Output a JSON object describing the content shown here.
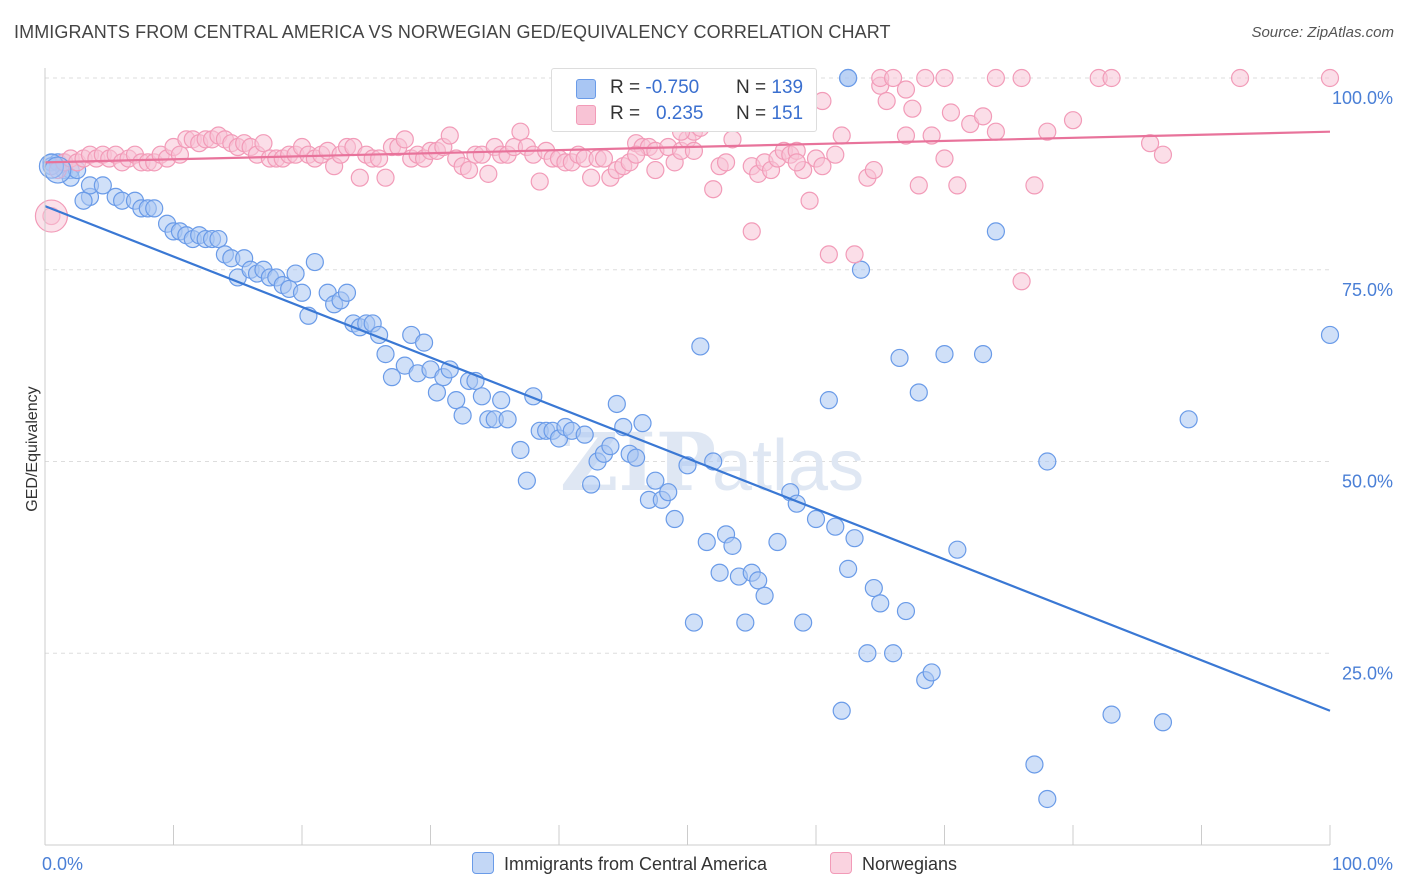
{
  "chart_data": {
    "type": "scatter",
    "title": "IMMIGRANTS FROM CENTRAL AMERICA VS NORWEGIAN GED/EQUIVALENCY CORRELATION CHART",
    "source": "Source: ZipAtlas.com",
    "ylabel": "GED/Equivalency",
    "xlim": [
      0,
      100
    ],
    "ylim": [
      0,
      100
    ],
    "x_tick_labels": [
      "0.0%",
      "100.0%"
    ],
    "y_tick_labels": [
      "25.0%",
      "50.0%",
      "75.0%",
      "100.0%"
    ],
    "y_tick_values": [
      25,
      50,
      75,
      100
    ],
    "grid": true,
    "legend_position": "top-center",
    "watermark": "ZIPatlas",
    "series": [
      {
        "name": "Immigrants from Central America",
        "color": "#6a9be8",
        "fill": "#a9c6f3",
        "line_color": "#3a78d4",
        "R": "-0.750",
        "N": "139",
        "trend": [
          [
            0,
            83.3
          ],
          [
            100,
            17.5
          ]
        ],
        "points": [
          [
            0.5,
            89
          ],
          [
            1,
            89
          ],
          [
            1.5,
            88
          ],
          [
            2,
            88
          ],
          [
            2,
            87
          ],
          [
            3.5,
            84.5
          ],
          [
            3.5,
            86
          ],
          [
            4.5,
            86
          ],
          [
            5.5,
            84.5
          ],
          [
            6,
            84
          ],
          [
            7,
            84
          ],
          [
            7.5,
            83
          ],
          [
            8,
            83
          ],
          [
            8.5,
            83
          ],
          [
            9.5,
            81
          ],
          [
            10,
            80
          ],
          [
            10.5,
            80
          ],
          [
            11,
            79.5
          ],
          [
            11.5,
            79
          ],
          [
            12,
            79.5
          ],
          [
            12.5,
            79
          ],
          [
            13,
            79
          ],
          [
            13.5,
            79
          ],
          [
            14,
            77
          ],
          [
            14.5,
            76.5
          ],
          [
            15,
            74
          ],
          [
            15.5,
            76.5
          ],
          [
            16,
            75
          ],
          [
            16.5,
            74.5
          ],
          [
            17,
            75
          ],
          [
            17.5,
            74
          ],
          [
            18,
            74
          ],
          [
            18.5,
            73
          ],
          [
            19,
            72.5
          ],
          [
            19.5,
            74.5
          ],
          [
            20,
            72
          ],
          [
            20.5,
            69
          ],
          [
            21,
            76
          ],
          [
            22,
            72
          ],
          [
            22.5,
            70.5
          ],
          [
            23,
            71
          ],
          [
            23.5,
            72
          ],
          [
            24,
            68
          ],
          [
            24.5,
            67.5
          ],
          [
            25,
            68
          ],
          [
            25.5,
            68
          ],
          [
            26,
            66.5
          ],
          [
            26.5,
            64
          ],
          [
            27,
            61
          ],
          [
            28,
            62.5
          ],
          [
            28.5,
            66.5
          ],
          [
            29,
            61.5
          ],
          [
            29.5,
            65.5
          ],
          [
            30,
            62
          ],
          [
            30.5,
            59
          ],
          [
            31,
            61
          ],
          [
            31.5,
            62
          ],
          [
            32,
            58
          ],
          [
            32.5,
            56
          ],
          [
            33,
            60.5
          ],
          [
            33.5,
            60.5
          ],
          [
            34,
            58.5
          ],
          [
            34.5,
            55.5
          ],
          [
            35,
            55.5
          ],
          [
            35.5,
            58
          ],
          [
            36,
            55.5
          ],
          [
            37,
            51.5
          ],
          [
            37.5,
            47.5
          ],
          [
            38,
            58.5
          ],
          [
            38.5,
            54
          ],
          [
            39,
            54
          ],
          [
            39.5,
            54
          ],
          [
            40,
            53
          ],
          [
            40.5,
            54.5
          ],
          [
            41,
            54
          ],
          [
            42,
            53.5
          ],
          [
            42.5,
            47
          ],
          [
            43,
            50
          ],
          [
            43.5,
            51
          ],
          [
            44,
            52
          ],
          [
            44.5,
            57.5
          ],
          [
            45,
            54.5
          ],
          [
            45.5,
            51
          ],
          [
            46,
            50.5
          ],
          [
            46.5,
            55
          ],
          [
            47,
            45
          ],
          [
            47.5,
            47.5
          ],
          [
            48,
            45
          ],
          [
            48.5,
            46
          ],
          [
            49,
            42.5
          ],
          [
            50,
            49.5
          ],
          [
            50.5,
            29
          ],
          [
            51,
            65
          ],
          [
            51.5,
            39.5
          ],
          [
            52,
            50
          ],
          [
            52.5,
            35.5
          ],
          [
            53,
            40.5
          ],
          [
            53.5,
            39
          ],
          [
            54,
            35
          ],
          [
            54.5,
            29
          ],
          [
            55,
            35.5
          ],
          [
            55.5,
            34.5
          ],
          [
            56,
            32.5
          ],
          [
            57,
            39.5
          ],
          [
            58,
            46
          ],
          [
            58.5,
            44.5
          ],
          [
            58.5,
            100
          ],
          [
            59,
            29
          ],
          [
            60,
            42.5
          ],
          [
            61,
            58
          ],
          [
            61.5,
            41.5
          ],
          [
            62,
            17.5
          ],
          [
            62.5,
            36
          ],
          [
            63,
            40
          ],
          [
            64,
            25
          ],
          [
            64.5,
            33.5
          ],
          [
            65,
            31.5
          ],
          [
            62.5,
            100
          ],
          [
            66,
            25
          ],
          [
            66.5,
            63.5
          ],
          [
            67,
            30.5
          ],
          [
            68,
            59
          ],
          [
            68.5,
            21.5
          ],
          [
            69,
            22.5
          ],
          [
            70,
            64
          ],
          [
            71,
            38.5
          ],
          [
            73,
            64
          ],
          [
            74,
            80
          ],
          [
            78,
            50
          ],
          [
            77,
            10.5
          ],
          [
            78,
            6
          ],
          [
            83,
            17
          ],
          [
            87,
            16
          ],
          [
            89,
            55.5
          ],
          [
            100,
            66.5
          ],
          [
            62.5,
            100
          ],
          [
            63.5,
            75
          ],
          [
            58,
            100
          ],
          [
            59,
            100
          ],
          [
            3,
            84
          ],
          [
            0.5,
            88.5
          ],
          [
            1.5,
            89
          ],
          [
            2.5,
            88
          ]
        ]
      },
      {
        "name": "Norwegians",
        "color": "#f29bb8",
        "fill": "#f8c3d5",
        "line_color": "#e8739b",
        "R": "0.235",
        "N": "151",
        "trend": [
          [
            0,
            89
          ],
          [
            100,
            93
          ]
        ],
        "points": [
          [
            0.5,
            82
          ],
          [
            1,
            88
          ],
          [
            1.5,
            89
          ],
          [
            2,
            89.5
          ],
          [
            2.5,
            89
          ],
          [
            3,
            89.5
          ],
          [
            3.5,
            90
          ],
          [
            4,
            89.5
          ],
          [
            4.5,
            90
          ],
          [
            5,
            89.5
          ],
          [
            5.5,
            90
          ],
          [
            6,
            89
          ],
          [
            6.5,
            89.5
          ],
          [
            7,
            90
          ],
          [
            7.5,
            89
          ],
          [
            8,
            89
          ],
          [
            8.5,
            89
          ],
          [
            9,
            90
          ],
          [
            9.5,
            89.5
          ],
          [
            10,
            91
          ],
          [
            10.5,
            90
          ],
          [
            11,
            92
          ],
          [
            11.5,
            92
          ],
          [
            12,
            91.5
          ],
          [
            12.5,
            92
          ],
          [
            13,
            92
          ],
          [
            13.5,
            92.5
          ],
          [
            14,
            92
          ],
          [
            14.5,
            91.5
          ],
          [
            15,
            91
          ],
          [
            15.5,
            91.5
          ],
          [
            16,
            91
          ],
          [
            16.5,
            90
          ],
          [
            17,
            91.5
          ],
          [
            17.5,
            89.5
          ],
          [
            18,
            89.5
          ],
          [
            18.5,
            89.5
          ],
          [
            19,
            90
          ],
          [
            19.5,
            90
          ],
          [
            20,
            91
          ],
          [
            20.5,
            90
          ],
          [
            21,
            89.5
          ],
          [
            21.5,
            90
          ],
          [
            22,
            90.5
          ],
          [
            22.5,
            88.5
          ],
          [
            23,
            90
          ],
          [
            23.5,
            91
          ],
          [
            24,
            91
          ],
          [
            24.5,
            87
          ],
          [
            25,
            90
          ],
          [
            25.5,
            89.5
          ],
          [
            26,
            89.5
          ],
          [
            26.5,
            87
          ],
          [
            27,
            91
          ],
          [
            27.5,
            91
          ],
          [
            28,
            92
          ],
          [
            28.5,
            89.5
          ],
          [
            29,
            90
          ],
          [
            29.5,
            89.5
          ],
          [
            30,
            90.5
          ],
          [
            30.5,
            90.5
          ],
          [
            31,
            91
          ],
          [
            31.5,
            92.5
          ],
          [
            32,
            89.5
          ],
          [
            32.5,
            88.5
          ],
          [
            33,
            88
          ],
          [
            33.5,
            90
          ],
          [
            34,
            90
          ],
          [
            34.5,
            87.5
          ],
          [
            35,
            91
          ],
          [
            35.5,
            90
          ],
          [
            36,
            90
          ],
          [
            36.5,
            91
          ],
          [
            37,
            93
          ],
          [
            37.5,
            91
          ],
          [
            38,
            90
          ],
          [
            38.5,
            86.5
          ],
          [
            39,
            90.5
          ],
          [
            39.5,
            89.5
          ],
          [
            40,
            89.5
          ],
          [
            40.5,
            89
          ],
          [
            41,
            89
          ],
          [
            41.5,
            90
          ],
          [
            42,
            89.5
          ],
          [
            42.5,
            87
          ],
          [
            43,
            89.5
          ],
          [
            43.5,
            89.5
          ],
          [
            44,
            87
          ],
          [
            44.5,
            88
          ],
          [
            45,
            88.5
          ],
          [
            45.5,
            89
          ],
          [
            46,
            91.5
          ],
          [
            46.5,
            91
          ],
          [
            47,
            91
          ],
          [
            47.5,
            90.5
          ],
          [
            48,
            95
          ],
          [
            48.5,
            91
          ],
          [
            49,
            89
          ],
          [
            49.5,
            90.5
          ],
          [
            50,
            92
          ],
          [
            50.5,
            93
          ],
          [
            51,
            93.5
          ],
          [
            52,
            85.5
          ],
          [
            52.5,
            88.5
          ],
          [
            53,
            89
          ],
          [
            53.5,
            92
          ],
          [
            54,
            95
          ],
          [
            55,
            88.5
          ],
          [
            55.5,
            87.5
          ],
          [
            56,
            89
          ],
          [
            56.5,
            88
          ],
          [
            57,
            89.5
          ],
          [
            57.5,
            90.5
          ],
          [
            58,
            90
          ],
          [
            58.5,
            90.5
          ],
          [
            59,
            88
          ],
          [
            59.5,
            84
          ],
          [
            60,
            89.5
          ],
          [
            60.5,
            88.5
          ],
          [
            61.5,
            90
          ],
          [
            62,
            92.5
          ],
          [
            61,
            77
          ],
          [
            63,
            77
          ],
          [
            64,
            87
          ],
          [
            64.5,
            88
          ],
          [
            65,
            99
          ],
          [
            65.5,
            97
          ],
          [
            67,
            92.5
          ],
          [
            67.5,
            96
          ],
          [
            68,
            86
          ],
          [
            69,
            92.5
          ],
          [
            70,
            89.5
          ],
          [
            70.5,
            95.5
          ],
          [
            71,
            86
          ],
          [
            72,
            94
          ],
          [
            73,
            95
          ],
          [
            74,
            93
          ],
          [
            76,
            73.5
          ],
          [
            77,
            86
          ],
          [
            78,
            93
          ],
          [
            80,
            94.5
          ],
          [
            82,
            100
          ],
          [
            83,
            100
          ],
          [
            86,
            91.5
          ],
          [
            87,
            90
          ],
          [
            93,
            100
          ],
          [
            100,
            100
          ],
          [
            55,
            80
          ],
          [
            49.5,
            93
          ],
          [
            50.5,
            90.5
          ],
          [
            58.5,
            89
          ],
          [
            60.5,
            97
          ],
          [
            68.5,
            100
          ],
          [
            70,
            100
          ],
          [
            74,
            100
          ],
          [
            76,
            100
          ],
          [
            65,
            100
          ],
          [
            66,
            100
          ],
          [
            67,
            98.5
          ],
          [
            46,
            90
          ],
          [
            47.5,
            88
          ]
        ]
      }
    ]
  }
}
